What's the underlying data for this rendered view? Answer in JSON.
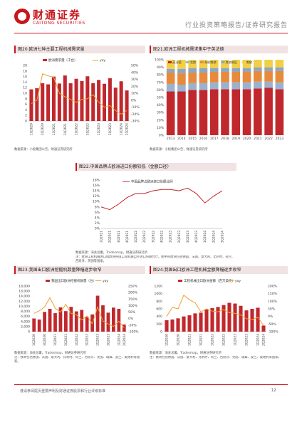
{
  "header": {
    "logo_cn": "财通证券",
    "logo_en": "CAITONG SECURITIES",
    "doc_type": "行业投资策略报告/证券研究报告"
  },
  "figures": {
    "f20": {
      "title": "图20.欧洲七种主要工程机械需求量",
      "source": "数据来源：小松集团公告，财通证券研究所"
    },
    "f21": {
      "title": "图21.欧洲工程机械需求集中于英法德",
      "source": "数据来源：小松集团公告，财通证券研究所"
    },
    "f22": {
      "title": "图22.中国品牌占欧洲进口份额较低（金额口径）",
      "source": "数据来源：海关总署，Tradesmap，财通证券研究所",
      "note": "注：欧洲工程机械进口指欧洲各国工程机械自外进口份额合计。图中的欧洲包括德国、法国、意大利、比利时、荷兰、西班牙、英国等国家。"
    },
    "f23": {
      "title": "图23.我国出口欧洲挖掘机数量降幅逐步收窄",
      "source": "数据来源：海关总署，Tradesmap，财通证券研究所",
      "note": "注：欧洲包括德国、法国、意大利、比利时、荷兰、西班牙、英国、瑞典、波兰、奥地利等国家。"
    },
    "f24": {
      "title": "图24.我国出口欧洲工程机械金额降幅逐步收窄",
      "source": "数据来源：海关总署，Tradesmap，财通证券研究所",
      "note": "注：欧洲包括德国、法国、意大利、比利时、荷兰、西班牙、英国、瑞典、波兰、奥地利等国家。"
    }
  },
  "footer": {
    "disclaimer": "谨请参阅尾页重要声明及财通证券股票和行业评级标准",
    "page_no": "12"
  },
  "chart_data": [
    {
      "id": "f20",
      "type": "bar",
      "series": [
        {
          "name": "欧洲需求量（千台）",
          "kind": "bar",
          "axis": "left",
          "color": "#c0282d",
          "values": [
            11.4,
            11.8,
            13.6,
            13.2,
            16.0,
            13.5,
            16.4,
            13.6,
            15.2,
            14.4,
            16.1,
            13.6,
            14.8,
            13.4,
            15.4,
            12.0,
            14.3,
            11.0
          ]
        },
        {
          "name": "yoy",
          "kind": "line",
          "axis": "right",
          "color": "#f0a030",
          "values": [
            -5,
            0,
            38,
            35,
            33,
            10,
            5,
            1,
            -3,
            1,
            2,
            8,
            -3,
            -10,
            -8,
            -15,
            -20,
            -15
          ]
        }
      ],
      "x": [
        "1Q2020",
        "2Q2020",
        "3Q2020",
        "4Q2020",
        "1Q2021",
        "2Q2021",
        "3Q2021",
        "4Q2021",
        "1Q2022",
        "2Q2022",
        "3Q2022",
        "4Q2022",
        "1Q2023",
        "2Q2023",
        "3Q2023",
        "4Q2023",
        "1Q2024",
        "2Q2024"
      ],
      "x_ticks": [
        "1Q2020",
        "3Q2020",
        "1Q2021",
        "3Q2021",
        "1Q2022",
        "3Q2022",
        "1Q2023",
        "3Q2023",
        "1Q2024",
        "2Q2024"
      ],
      "ylim": [
        0,
        20
      ],
      "y_ticks": [
        "0",
        "2",
        "4",
        "6",
        "8",
        "10",
        "12",
        "14",
        "16",
        "18",
        "20"
      ],
      "ylim2": [
        -30,
        50
      ],
      "y2_ticks": [
        "-30%",
        "-20%",
        "-10%",
        "0%",
        "10%",
        "20%",
        "30%",
        "40%",
        "50%"
      ]
    },
    {
      "id": "f21",
      "type": "bar",
      "stacked": true,
      "categories": [
        "2013",
        "2014",
        "2015",
        "2016",
        "2017",
        "2018",
        "2019",
        "2020",
        "2021",
        "2022",
        "2023"
      ],
      "series": [
        {
          "name": "英法德",
          "color": "#c0282d",
          "values": [
            58,
            58,
            60,
            60,
            61,
            61,
            61,
            61,
            62,
            63,
            61
          ]
        },
        {
          "name": "北欧",
          "color": "#9ab2cf",
          "values": [
            10,
            9,
            9,
            9,
            9,
            9,
            9,
            9,
            9,
            8,
            9
          ]
        },
        {
          "name": "东欧南欧",
          "color": "#e88a3c",
          "values": [
            15,
            15,
            14,
            14,
            14,
            14,
            14,
            14,
            14,
            14,
            15
          ]
        },
        {
          "name": "其他地区",
          "color": "#8da6c2",
          "values": [
            5,
            6,
            6,
            6,
            5,
            5,
            5,
            5,
            5,
            5,
            5
          ]
        },
        {
          "name": "南欧",
          "color": "#f3cf45",
          "values": [
            12,
            12,
            11,
            11,
            11,
            11,
            11,
            11,
            10,
            10,
            10
          ]
        }
      ],
      "ylim": [
        0,
        100
      ],
      "y_ticks": [
        "0%",
        "10%",
        "20%",
        "30%",
        "40%",
        "50%",
        "60%",
        "70%",
        "80%",
        "90%",
        "100%"
      ]
    },
    {
      "id": "f22",
      "type": "line",
      "series": [
        {
          "name": "中国品牌占欧洲进口份额比例",
          "color": "#c0282d",
          "values": [
            8.0,
            7.0,
            9.0,
            11.5,
            13.0,
            13.0,
            14.0,
            14.5,
            14.5,
            14.0,
            15.0,
            13.0,
            9.5,
            12.0,
            14.0
          ]
        }
      ],
      "x": [
        "1Q2021",
        "2Q2021",
        "3Q2021",
        "4Q2021",
        "1Q2022",
        "2Q2022",
        "3Q2022",
        "4Q2022",
        "1Q2023",
        "2Q2023",
        "3Q2023",
        "4Q2023",
        "1Q2024",
        "2Q2024",
        "3Q2024"
      ],
      "ylim": [
        0,
        18
      ],
      "y_ticks": [
        "0%",
        "2%",
        "4%",
        "6%",
        "8%",
        "10%",
        "12%",
        "14%",
        "16%",
        "18%"
      ]
    },
    {
      "id": "f23",
      "type": "bar",
      "series": [
        {
          "name": "我国出口欧洲挖掘机数量（台）",
          "kind": "bar",
          "axis": "left",
          "color": "#c0282d",
          "values": [
            5200,
            4800,
            7800,
            9000,
            7300,
            9600,
            8100,
            9800,
            8000,
            8600,
            5800,
            6800,
            14200,
            10400,
            7500,
            9500,
            9000,
            2800
          ]
        },
        {
          "name": "yoy",
          "kind": "line",
          "axis": "right",
          "color": "#f0a030",
          "values": [
            40,
            60,
            90,
            160,
            80,
            50,
            110,
            40,
            30,
            -10,
            20,
            -40,
            90,
            -20,
            -40,
            -60,
            -20,
            -70
          ]
        }
      ],
      "x": [
        "1Q2020",
        "2Q2020",
        "3Q2020",
        "4Q2020",
        "1Q2021",
        "2Q2021",
        "3Q2021",
        "4Q2021",
        "1Q2022",
        "2Q2022",
        "3Q2022",
        "4Q2022",
        "1Q2023",
        "2Q2023",
        "3Q2023",
        "4Q2023",
        "1Q2024",
        "2Q2024"
      ],
      "x_ticks": [
        "1Q2020",
        "3Q2020",
        "1Q2021",
        "3Q2021",
        "1Q2022",
        "3Q2022",
        "1Q2023",
        "3Q2023",
        "1Q2024",
        "2Q2024"
      ],
      "ylim": [
        0,
        18000
      ],
      "y_ticks": [
        "0",
        "2,000",
        "4,000",
        "6,000",
        "8,000",
        "10,000",
        "12,000",
        "14,000",
        "16,000",
        "18,000"
      ],
      "ylim2": [
        -100,
        250
      ],
      "y2_ticks": [
        "-100%",
        "-50%",
        "0%",
        "50%",
        "100%",
        "150%",
        "200%",
        "250%"
      ]
    },
    {
      "id": "f24",
      "type": "bar",
      "series": [
        {
          "name": "工程机械出口欧洲金额（百万美元）",
          "kind": "bar",
          "axis": "left",
          "color": "#c0282d",
          "values": [
            300,
            320,
            350,
            400,
            430,
            480,
            500,
            590,
            620,
            650,
            700,
            760,
            740,
            680,
            560,
            600,
            630,
            160
          ]
        },
        {
          "name": "yoy",
          "kind": "line",
          "axis": "right",
          "color": "#f0a030",
          "values": [
            0,
            60,
            50,
            140,
            110,
            90,
            30,
            50,
            35,
            30,
            45,
            25,
            20,
            10,
            -15,
            -20,
            -5,
            -60
          ]
        }
      ],
      "x": [
        "1Q2020",
        "2Q2020",
        "3Q2020",
        "4Q2020",
        "1Q2021",
        "2Q2021",
        "3Q2021",
        "4Q2021",
        "1Q2022",
        "2Q2022",
        "3Q2022",
        "4Q2022",
        "1Q2023",
        "2Q2023",
        "3Q2023",
        "4Q2023",
        "1Q2024",
        "2Q2024"
      ],
      "x_ticks": [
        "1Q2020",
        "3Q2020",
        "1Q2021",
        "3Q2021",
        "1Q2022",
        "3Q2022",
        "1Q2023",
        "3Q2023",
        "1Q2024",
        "2Q2024"
      ],
      "ylim": [
        0,
        1200
      ],
      "y_ticks": [
        "0",
        "200",
        "400",
        "600",
        "800",
        "1000",
        "1200"
      ],
      "ylim2": [
        -100,
        200
      ],
      "y2_ticks": [
        "-100%",
        "-50%",
        "0%",
        "50%",
        "100%",
        "150%",
        "200%"
      ]
    }
  ]
}
